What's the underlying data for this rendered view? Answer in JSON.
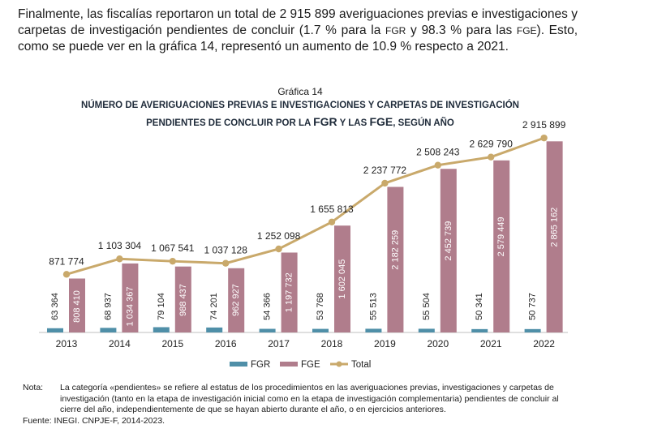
{
  "intro": {
    "line1": "Finalmente, las fiscalías reportaron un total de 2 915 899 averiguaciones previas e",
    "line2a": "investigaciones y carpetas de investigación pendientes de concluir (1.7 % para la ",
    "fgr": "FGR",
    "line2b": " y",
    "line3a": "98.3 % para las ",
    "fge": "FGE",
    "line3b": "). Esto, como se puede ver en la gráfica 14, representó un aumento de",
    "line4": "10.9 % respecto a 2021."
  },
  "chart_data": {
    "type": "bar",
    "caption": "Gráfica 14",
    "title_line1": "Número de averiguaciones previas e investigaciones y carpetas de investigación",
    "title_line2_pre": "pendientes de concluir por la ",
    "title_fgr": "FGR",
    "title_mid": " y las ",
    "title_fge": "FGE",
    "title_post": ", según año",
    "categories": [
      "2013",
      "2014",
      "2015",
      "2016",
      "2017",
      "2018",
      "2019",
      "2020",
      "2021",
      "2022"
    ],
    "series": [
      {
        "name": "FGR",
        "kind": "bar",
        "color": "#4f8fa8",
        "values": [
          63364,
          68937,
          79104,
          74201,
          54366,
          53768,
          55513,
          55504,
          50341,
          50737
        ],
        "labels": [
          "63 364",
          "68 937",
          "79 104",
          "74 201",
          "54 366",
          "53 768",
          "55 513",
          "55 504",
          "50 341",
          "50 737"
        ]
      },
      {
        "name": "FGE",
        "kind": "bar",
        "color": "#b07d8c",
        "values": [
          808410,
          1034367,
          988437,
          962927,
          1197732,
          1602045,
          2182259,
          2452739,
          2579449,
          2865162
        ],
        "labels": [
          "808 410",
          "1 034 367",
          "988 437",
          "962 927",
          "1 197 732",
          "1 602 045",
          "2 182 259",
          "2 452 739",
          "2 579 449",
          "2 865 162"
        ]
      },
      {
        "name": "Total",
        "kind": "line",
        "color": "#c9a96b",
        "values": [
          871774,
          1103304,
          1067541,
          1037128,
          1252098,
          1655813,
          2237772,
          2508243,
          2629790,
          2915899
        ],
        "labels": [
          "871 774",
          "1 103 304",
          "1 067 541",
          "1 037 128",
          "1 252 098",
          "1 655 813",
          "2 237 772",
          "2 508 243",
          "2 629 790",
          "2 915 899"
        ]
      }
    ],
    "ylim": [
      0,
      3100000
    ],
    "legend_position": "bottom-center"
  },
  "note": {
    "label": "Nota:",
    "text": "La categoría «pendientes» se refiere al estatus de los procedimientos en las averiguaciones previas, investigaciones y carpetas de investigación (tanto en la etapa de investigación inicial como en la etapa de investigación complementaria) pendientes de concluir al cierre del año, independientemente de que se hayan abierto durante el año, o en ejercicios anteriores.",
    "source_label": "Fuente:",
    "source_text": "INEGI. CNPJE-F, 2014-2023."
  }
}
